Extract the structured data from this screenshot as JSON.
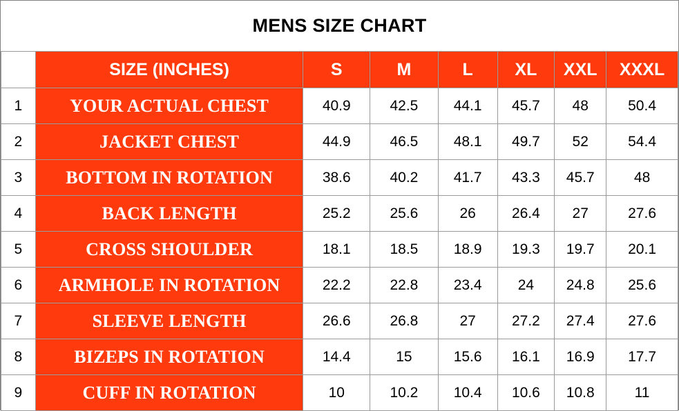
{
  "colors": {
    "header_background": "#ff3a0d",
    "header_text": "#ffffff",
    "border": "#9a9a9a"
  },
  "chart_data": {
    "type": "table",
    "title": "MENS SIZE CHART",
    "header_label": "SIZE (INCHES)",
    "sizes": [
      "S",
      "M",
      "L",
      "XL",
      "XXL",
      "XXXL"
    ],
    "rows": [
      {
        "index": "1",
        "label": "YOUR ACTUAL CHEST",
        "values": [
          "40.9",
          "42.5",
          "44.1",
          "45.7",
          "48",
          "50.4"
        ]
      },
      {
        "index": "2",
        "label": "JACKET CHEST",
        "values": [
          "44.9",
          "46.5",
          "48.1",
          "49.7",
          "52",
          "54.4"
        ]
      },
      {
        "index": "3",
        "label": "BOTTOM IN ROTATION",
        "values": [
          "38.6",
          "40.2",
          "41.7",
          "43.3",
          "45.7",
          "48"
        ]
      },
      {
        "index": "4",
        "label": "BACK LENGTH",
        "values": [
          "25.2",
          "25.6",
          "26",
          "26.4",
          "27",
          "27.6"
        ]
      },
      {
        "index": "5",
        "label": "CROSS SHOULDER",
        "values": [
          "18.1",
          "18.5",
          "18.9",
          "19.3",
          "19.7",
          "20.1"
        ]
      },
      {
        "index": "6",
        "label": "ARMHOLE IN ROTATION",
        "values": [
          "22.2",
          "22.8",
          "23.4",
          "24",
          "24.8",
          "25.6"
        ]
      },
      {
        "index": "7",
        "label": "SLEEVE LENGTH",
        "values": [
          "26.6",
          "26.8",
          "27",
          "27.2",
          "27.4",
          "27.6"
        ]
      },
      {
        "index": "8",
        "label": "BIZEPS IN ROTATION",
        "values": [
          "14.4",
          "15",
          "15.6",
          "16.1",
          "16.9",
          "17.7"
        ]
      },
      {
        "index": "9",
        "label": "CUFF IN ROTATION",
        "values": [
          "10",
          "10.2",
          "10.4",
          "10.6",
          "10.8",
          "11"
        ]
      }
    ]
  }
}
